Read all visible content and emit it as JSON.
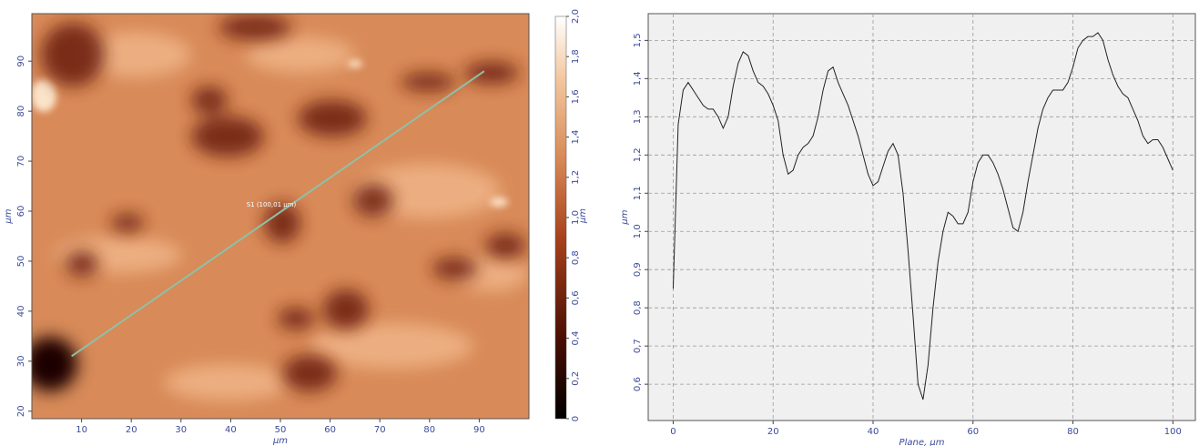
{
  "chart_data": [
    {
      "type": "image",
      "xlabel": "µm",
      "ylabel": "µm",
      "xlim": [
        0,
        100
      ],
      "ylim": [
        18.5,
        99.5
      ],
      "xticks": [
        10,
        20,
        30,
        40,
        50,
        60,
        70,
        80,
        90
      ],
      "yticks": [
        20,
        30,
        40,
        50,
        60,
        70,
        80,
        90
      ],
      "annotation": "S1 (100,01 µm)",
      "profile_line": {
        "x": [
          8,
          91
        ],
        "y": [
          31,
          88
        ],
        "color": "#8fc0a8"
      },
      "colorbar": {
        "label": "µm",
        "lim": [
          0,
          2.0
        ],
        "ticks": [
          0,
          {
            "value": 0.2,
            "label": "0,2"
          },
          {
            "value": 0.4,
            "label": "0,4"
          },
          {
            "value": 0.6,
            "label": "0,6"
          },
          {
            "value": 0.8,
            "label": "0,8"
          },
          {
            "value": 1.0,
            "label": "1,0"
          },
          {
            "value": 1.2,
            "label": "1,2"
          },
          {
            "value": 1.4,
            "label": "1,4"
          },
          {
            "value": 1.6,
            "label": "1,6"
          },
          {
            "value": 1.8,
            "label": "1,8"
          },
          {
            "value": 2.0,
            "label": "2,0"
          }
        ]
      }
    },
    {
      "type": "line",
      "xlabel": "Plane, µm",
      "ylabel": "µm",
      "xlim": [
        -5,
        104.5
      ],
      "ylim": [
        0.505,
        1.57
      ],
      "grid": true,
      "xticks": [
        0,
        20,
        40,
        60,
        80,
        100
      ],
      "yticks": [
        {
          "value": 0.6,
          "label": "0,6"
        },
        {
          "value": 0.7,
          "label": "0,7"
        },
        {
          "value": 0.8,
          "label": "0,8"
        },
        {
          "value": 0.9,
          "label": "0,9"
        },
        {
          "value": 1.0,
          "label": "1,0"
        },
        {
          "value": 1.1,
          "label": "1,1"
        },
        {
          "value": 1.2,
          "label": "1,2"
        },
        {
          "value": 1.3,
          "label": "1,3"
        },
        {
          "value": 1.4,
          "label": "1,4"
        },
        {
          "value": 1.5,
          "label": "1,5"
        }
      ],
      "x": [
        0,
        1,
        2,
        3,
        4,
        5,
        6,
        7,
        8,
        9,
        10,
        11,
        12,
        13,
        14,
        15,
        16,
        17,
        18,
        19,
        20,
        21,
        22,
        23,
        24,
        25,
        26,
        27,
        28,
        29,
        30,
        31,
        32,
        33,
        34,
        35,
        36,
        37,
        38,
        39,
        40,
        41,
        42,
        43,
        44,
        45,
        46,
        47,
        48,
        49,
        50,
        51,
        52,
        53,
        54,
        55,
        56,
        57,
        58,
        59,
        60,
        61,
        62,
        63,
        64,
        65,
        66,
        67,
        68,
        69,
        70,
        71,
        72,
        73,
        74,
        75,
        76,
        77,
        78,
        79,
        80,
        81,
        82,
        83,
        84,
        85,
        86,
        87,
        88,
        89,
        90,
        91,
        92,
        93,
        94,
        95,
        96,
        97,
        98,
        99,
        100
      ],
      "series": [
        {
          "color": "#222222",
          "values": [
            0.85,
            1.28,
            1.37,
            1.39,
            1.37,
            1.35,
            1.33,
            1.32,
            1.32,
            1.3,
            1.27,
            1.3,
            1.38,
            1.44,
            1.47,
            1.46,
            1.42,
            1.39,
            1.38,
            1.36,
            1.33,
            1.29,
            1.2,
            1.15,
            1.16,
            1.2,
            1.22,
            1.23,
            1.25,
            1.3,
            1.37,
            1.42,
            1.43,
            1.39,
            1.36,
            1.33,
            1.29,
            1.25,
            1.2,
            1.15,
            1.12,
            1.13,
            1.17,
            1.21,
            1.23,
            1.2,
            1.1,
            0.95,
            0.78,
            0.6,
            0.56,
            0.65,
            0.8,
            0.92,
            1.0,
            1.05,
            1.04,
            1.02,
            1.02,
            1.05,
            1.13,
            1.18,
            1.2,
            1.2,
            1.18,
            1.15,
            1.11,
            1.06,
            1.01,
            1.0,
            1.05,
            1.13,
            1.2,
            1.27,
            1.32,
            1.35,
            1.37,
            1.37,
            1.37,
            1.39,
            1.43,
            1.48,
            1.5,
            1.51,
            1.51,
            1.52,
            1.5,
            1.45,
            1.41,
            1.38,
            1.36,
            1.35,
            1.32,
            1.29,
            1.25,
            1.23,
            1.24,
            1.24,
            1.22,
            1.19,
            1.16
          ]
        }
      ]
    }
  ]
}
